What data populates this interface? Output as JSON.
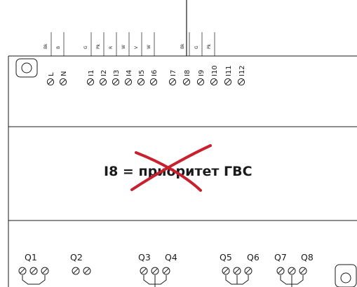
{
  "wire_colors": [
    "Bk",
    "B",
    "G",
    "Pk",
    "R",
    "W",
    "V",
    "W",
    "Bk",
    "G",
    "Pk"
  ],
  "input_terminals": [
    "L",
    "N",
    "I1",
    "I2",
    "I3",
    "I4",
    "I5",
    "I6",
    "I7",
    "I8",
    "I9",
    "I10",
    "I11",
    "I12"
  ],
  "note": {
    "prefix": "I8 = ",
    "struck": "при",
    "rest": "оритет ГВС"
  },
  "outputs": [
    "Q1",
    "Q2",
    "Q3",
    "Q4",
    "Q5",
    "Q6",
    "Q7",
    "Q8"
  ],
  "colors": {
    "strike": "#c8202f",
    "line": "#1a1a1a"
  }
}
